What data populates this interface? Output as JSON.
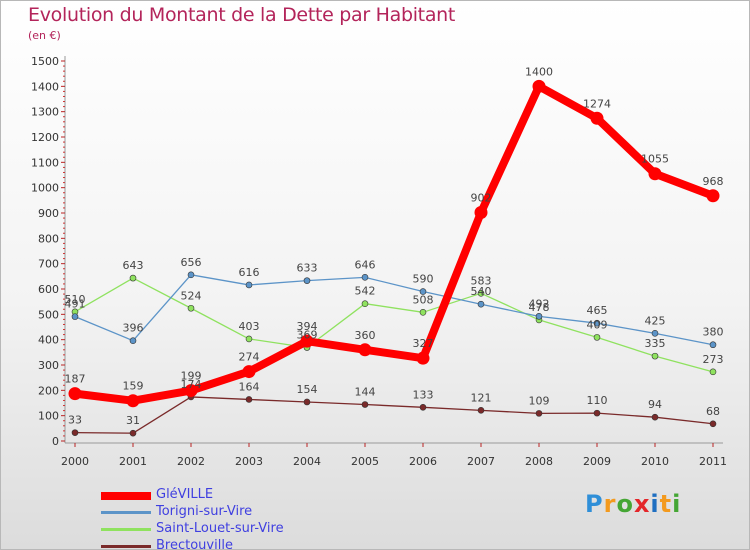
{
  "title": "Evolution du Montant de la Dette par Habitant",
  "subtitle": "(en €)",
  "logo": {
    "text": "Proxiti",
    "colors": [
      "#2f8fd8",
      "#f39a1e",
      "#45a634",
      "#e4262a",
      "#1f6fc1",
      "#f39a1e",
      "#45a634"
    ]
  },
  "chart_data": {
    "type": "line",
    "title": "Evolution du Montant de la Dette par Habitant",
    "ylabel": "(en €)",
    "xlabel": "",
    "x": [
      "2000",
      "2001",
      "2002",
      "2003",
      "2004",
      "2005",
      "2006",
      "2007",
      "2008",
      "2009",
      "2010",
      "2011"
    ],
    "ylim": [
      0,
      1500
    ],
    "yticks": [
      0,
      100,
      200,
      300,
      400,
      500,
      600,
      700,
      800,
      900,
      1000,
      1100,
      1200,
      1300,
      1400,
      1500
    ],
    "grid": false,
    "legend_position": "bottom-left",
    "series": [
      {
        "name": "GléVILLE",
        "color": "#ff0000",
        "values": [
          187,
          159,
          199,
          274,
          394,
          360,
          327,
          902,
          1400,
          1274,
          1055,
          968
        ]
      },
      {
        "name": "Torigni-sur-Vire",
        "color": "#5c94c8",
        "values": [
          491,
          396,
          656,
          616,
          633,
          646,
          590,
          540,
          492,
          465,
          425,
          380
        ]
      },
      {
        "name": "Saint-Louet-sur-Vire",
        "color": "#8fe25f",
        "values": [
          510,
          643,
          524,
          403,
          369,
          542,
          508,
          583,
          478,
          409,
          335,
          273
        ]
      },
      {
        "name": "Brectouville",
        "color": "#7a2a2a",
        "values": [
          33,
          31,
          174,
          164,
          154,
          144,
          133,
          121,
          109,
          110,
          94,
          68
        ]
      }
    ]
  }
}
